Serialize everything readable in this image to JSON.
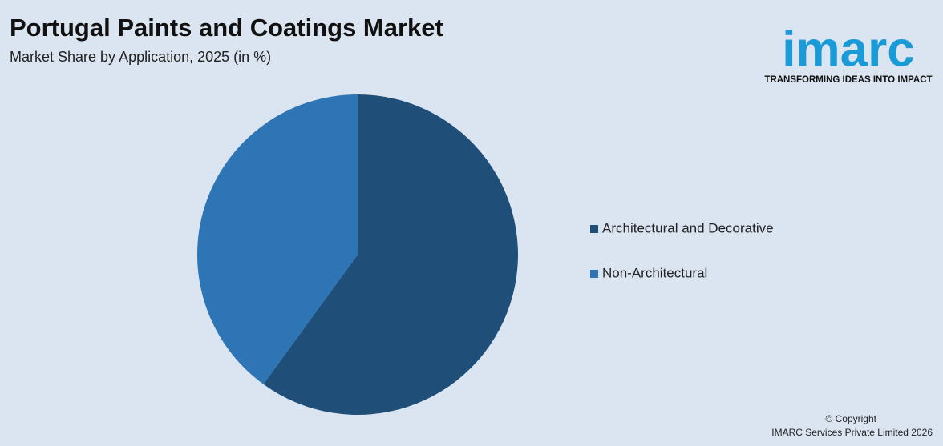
{
  "chart_data": {
    "type": "pie",
    "title": "Portugal Paints and Coatings Market",
    "subtitle": "Market Share by Application, 2025 (in %)",
    "categories": [
      "Architectural and Decorative",
      "Non-Architectural"
    ],
    "values": [
      60,
      40
    ],
    "colors": [
      "#1f4e79",
      "#2e75b6"
    ],
    "legend": "right"
  },
  "logo": {
    "name": "imarc",
    "tagline": "TRANSFORMING IDEAS INTO IMPACT"
  },
  "footer": {
    "copyright": "© Copyright",
    "company": "IMARC Services Private Limited 2026"
  }
}
